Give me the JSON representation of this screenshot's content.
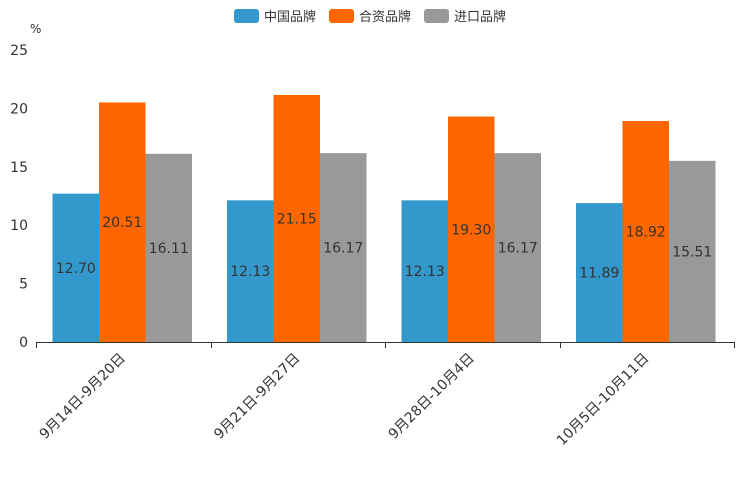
{
  "chart_data": {
    "type": "bar",
    "title": "",
    "xlabel": "",
    "ylabel": "%",
    "ylim": [
      0,
      25
    ],
    "yticks": [
      0,
      5,
      10,
      15,
      20,
      25
    ],
    "categories": [
      "9月14日-9月20日",
      "9月21日-9月27日",
      "9月28日-10月4日",
      "10月5日-10月11日"
    ],
    "series": [
      {
        "name": "中国品牌",
        "color": "#3399cc",
        "values": [
          12.7,
          12.13,
          12.13,
          11.89
        ],
        "labels": [
          "12.70",
          "12.13",
          "12.13",
          "11.89"
        ]
      },
      {
        "name": "合资品牌",
        "color": "#ff6600",
        "values": [
          20.51,
          21.15,
          19.3,
          18.92
        ],
        "labels": [
          "20.51",
          "21.15",
          "19.30",
          "18.92"
        ]
      },
      {
        "name": "进口品牌",
        "color": "#999999",
        "values": [
          16.11,
          16.17,
          16.17,
          15.51
        ],
        "labels": [
          "16.11",
          "16.17",
          "16.17",
          "15.51"
        ]
      }
    ],
    "legend_position": "top-center",
    "grid": false
  }
}
